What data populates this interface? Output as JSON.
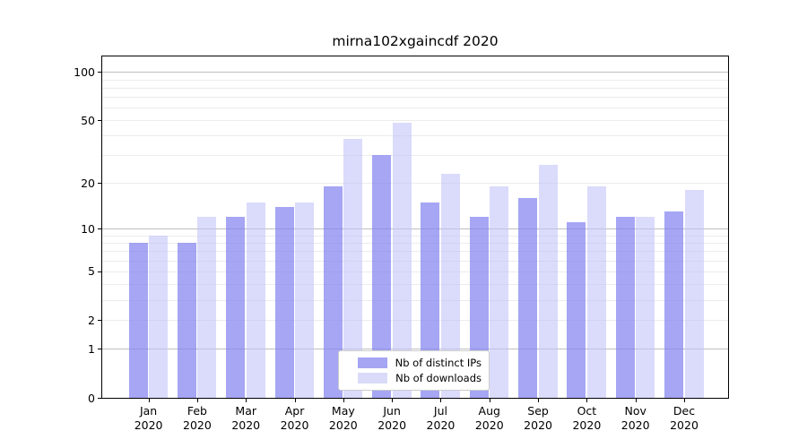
{
  "chart_data": {
    "type": "bar",
    "title": "mirna102xgaincdf 2020",
    "x_labels": [
      "Jan\n2020",
      "Feb\n2020",
      "Mar\n2020",
      "Apr\n2020",
      "May\n2020",
      "Jun\n2020",
      "Jul\n2020",
      "Aug\n2020",
      "Sep\n2020",
      "Oct\n2020",
      "Nov\n2020",
      "Dec\n2020"
    ],
    "series": [
      {
        "name": "Nb of distinct IPs",
        "values": [
          8,
          8,
          12,
          14,
          19,
          30,
          15,
          12,
          16,
          11,
          12,
          13
        ],
        "color": "#a5a5f3",
        "fill": "rgba(132,132,240,0.72)"
      },
      {
        "name": "Nb of downloads",
        "values": [
          9,
          12,
          15,
          15,
          38,
          48,
          23,
          19,
          26,
          19,
          12,
          18
        ],
        "color": "#dadaf9",
        "fill": "rgba(195,195,248,0.6)"
      }
    ],
    "y_scale": "log1p",
    "ylim": [
      0,
      125
    ],
    "y_tick_labels": [
      "100",
      "50",
      "20",
      "10",
      "5",
      "2",
      "1",
      "0"
    ],
    "y_tick_values": [
      100,
      50,
      20,
      10,
      5,
      2,
      1,
      0
    ],
    "y_major_gridlines": [
      1,
      10,
      100
    ],
    "y_minor_gridlines": [
      2,
      3,
      4,
      5,
      6,
      7,
      8,
      9,
      20,
      30,
      40,
      50,
      60,
      70,
      80,
      90
    ],
    "grid": true,
    "legend_position": "lower center",
    "xlabel": "",
    "ylabel": ""
  },
  "colors": {
    "background": "#ffffff",
    "axis": "#000000",
    "text": "#000000",
    "major_grid": "#bfbfbf",
    "minor_grid": "#ececec",
    "legend_border": "#cccccc"
  }
}
